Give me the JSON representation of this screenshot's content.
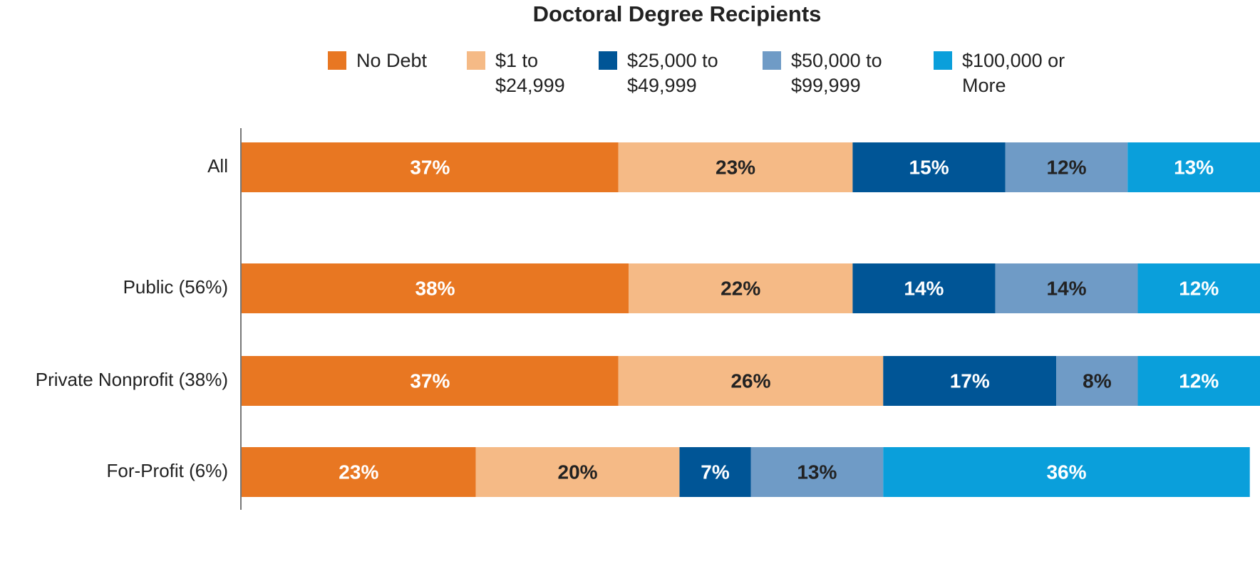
{
  "chart_data": {
    "type": "stacked_bar_horizontal",
    "title": "Doctoral Degree Recipients",
    "categories": [
      "All",
      "Public (56%)",
      "Private Nonprofit (38%)",
      "For-Profit (6%)"
    ],
    "xlim": [
      0,
      100
    ],
    "series": [
      {
        "name": "No Debt",
        "color": "#e87722",
        "values": [
          37,
          38,
          37,
          23
        ],
        "value_labels": [
          "37%",
          "38%",
          "37%",
          "23%"
        ]
      },
      {
        "name": "$1 to $24,999",
        "color": "#f5ba86",
        "values": [
          23,
          22,
          26,
          20
        ],
        "value_labels": [
          "23%",
          "22%",
          "26%",
          "20%"
        ]
      },
      {
        "name": "$25,000 to $49,999",
        "color": "#005596",
        "values": [
          15,
          14,
          17,
          7
        ],
        "value_labels": [
          "15%",
          "14%",
          "17%",
          "7%"
        ]
      },
      {
        "name": "$50,000 to $99,999",
        "color": "#6f9bc6",
        "values": [
          12,
          14,
          8,
          13
        ],
        "value_labels": [
          "12%",
          "14%",
          "8%",
          "13%"
        ]
      },
      {
        "name": "$100,000 or More",
        "color": "#0a9fdb",
        "values": [
          13,
          12,
          12,
          36
        ],
        "value_labels": [
          "13%",
          "12%",
          "12%",
          "36%"
        ]
      }
    ]
  }
}
